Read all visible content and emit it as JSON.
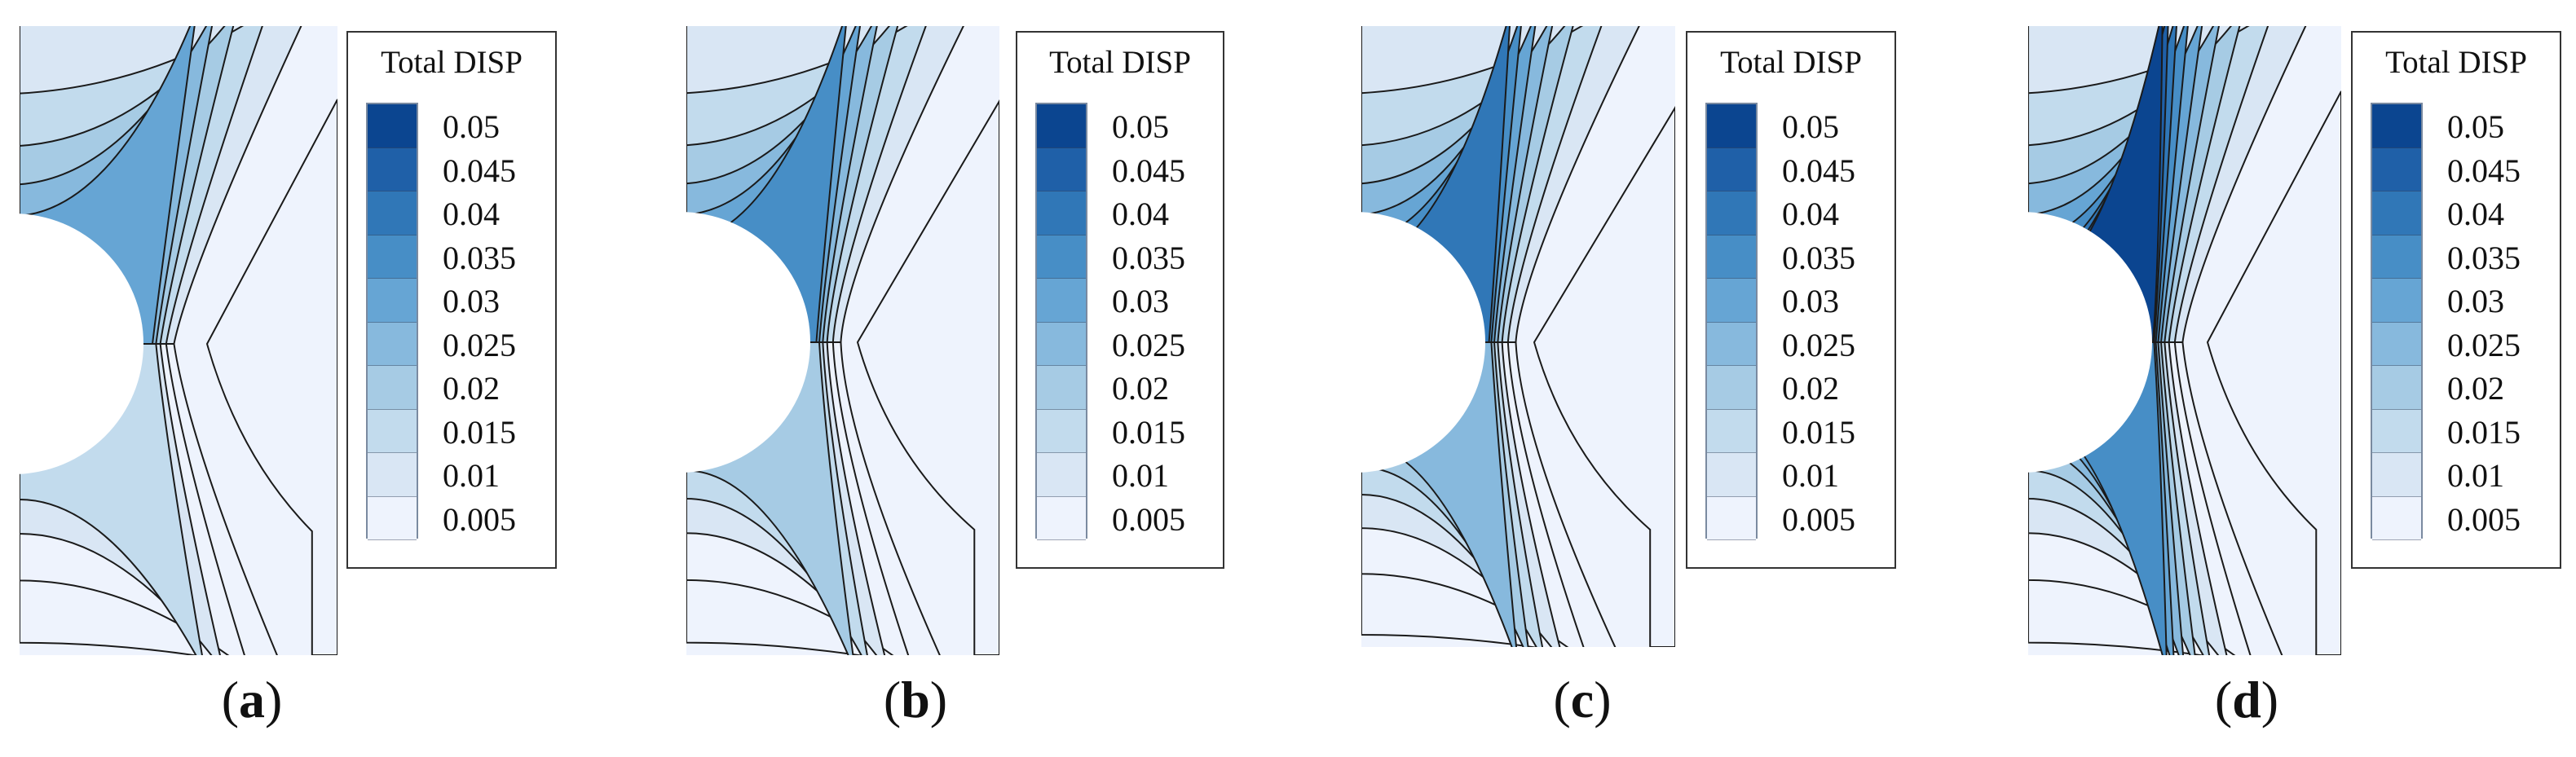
{
  "figure": {
    "legend_title": "Total DISP",
    "legend_levels": [
      "0.05",
      "0.045",
      "0.04",
      "0.035",
      "0.03",
      "0.025",
      "0.02",
      "0.015",
      "0.01",
      "0.005"
    ],
    "level_colors": [
      "#0b4590",
      "#1f60a8",
      "#3077b7",
      "#478ec6",
      "#66a5d4",
      "#87b9dd",
      "#a6cbe4",
      "#c2dbed",
      "#d9e6f4",
      "#eef3fd"
    ],
    "contour_line_color": "#1a1a1a",
    "panels": [
      {
        "id": "a",
        "caption_open": "(",
        "caption_letter": "a",
        "caption_close": ")"
      },
      {
        "id": "b",
        "caption_open": "(",
        "caption_letter": "b",
        "caption_close": ")"
      },
      {
        "id": "c",
        "caption_open": "(",
        "caption_letter": "c",
        "caption_close": ")"
      },
      {
        "id": "d",
        "caption_open": "(",
        "caption_letter": "d",
        "caption_close": ")"
      }
    ]
  }
}
